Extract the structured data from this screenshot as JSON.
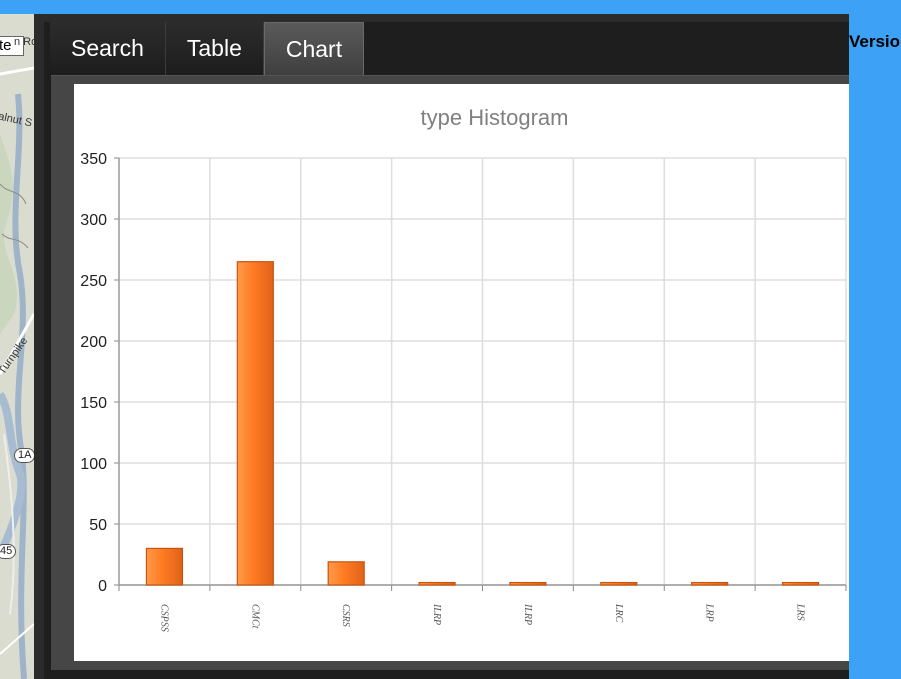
{
  "map": {
    "input_value": "te",
    "labels": [
      "n Ro",
      "alnut S",
      "Turnpike"
    ],
    "badges": [
      "1A",
      "45"
    ]
  },
  "tabs": [
    {
      "label": "Search",
      "active": false
    },
    {
      "label": "Table",
      "active": false
    },
    {
      "label": "Chart",
      "active": true
    }
  ],
  "version_label": "Versio",
  "chart_data": {
    "type": "bar",
    "title": "type Histogram",
    "categories": [
      "CSPSS",
      "CMCt",
      "CSRS",
      "ILRP",
      "ILRP",
      "LRC",
      "LRP",
      "LRS"
    ],
    "values": [
      30,
      265,
      19,
      2,
      2,
      2,
      2,
      2
    ],
    "yticks": [
      0,
      50,
      100,
      150,
      200,
      250,
      300,
      350
    ],
    "ylim": [
      0,
      350
    ],
    "grid": true,
    "legend": "none",
    "bar_color": "#ff7a22"
  }
}
